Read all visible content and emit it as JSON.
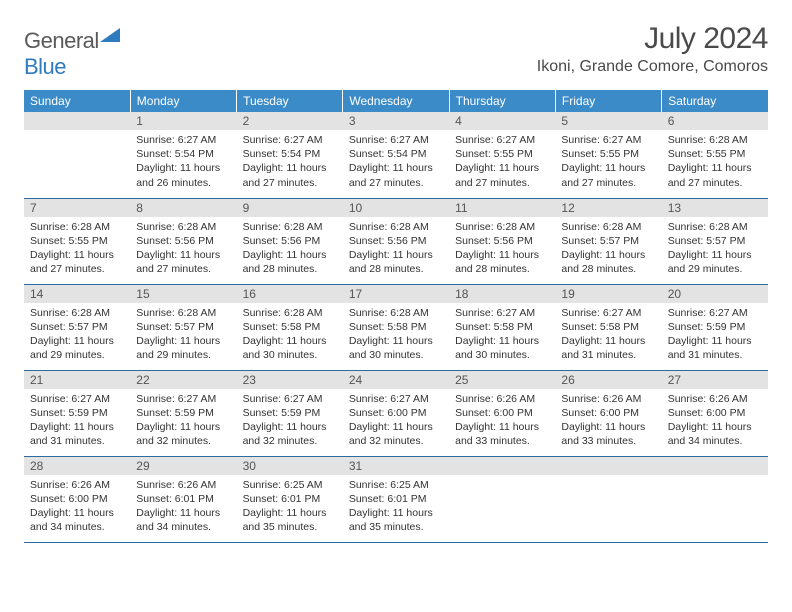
{
  "logo": {
    "text1": "General",
    "text2": "Blue"
  },
  "title": "July 2024",
  "location": "Ikoni, Grande Comore, Comoros",
  "colors": {
    "header_bg": "#3b8bc8",
    "header_text": "#ffffff",
    "daynum_bg": "#e3e3e3",
    "border": "#2f6a9e",
    "logo_gray": "#5a5a5a",
    "logo_blue": "#2f7bbf"
  },
  "weekdays": [
    "Sunday",
    "Monday",
    "Tuesday",
    "Wednesday",
    "Thursday",
    "Friday",
    "Saturday"
  ],
  "weeks": [
    [
      {
        "num": "",
        "lines": []
      },
      {
        "num": "1",
        "lines": [
          "Sunrise: 6:27 AM",
          "Sunset: 5:54 PM",
          "Daylight: 11 hours and 26 minutes."
        ]
      },
      {
        "num": "2",
        "lines": [
          "Sunrise: 6:27 AM",
          "Sunset: 5:54 PM",
          "Daylight: 11 hours and 27 minutes."
        ]
      },
      {
        "num": "3",
        "lines": [
          "Sunrise: 6:27 AM",
          "Sunset: 5:54 PM",
          "Daylight: 11 hours and 27 minutes."
        ]
      },
      {
        "num": "4",
        "lines": [
          "Sunrise: 6:27 AM",
          "Sunset: 5:55 PM",
          "Daylight: 11 hours and 27 minutes."
        ]
      },
      {
        "num": "5",
        "lines": [
          "Sunrise: 6:27 AM",
          "Sunset: 5:55 PM",
          "Daylight: 11 hours and 27 minutes."
        ]
      },
      {
        "num": "6",
        "lines": [
          "Sunrise: 6:28 AM",
          "Sunset: 5:55 PM",
          "Daylight: 11 hours and 27 minutes."
        ]
      }
    ],
    [
      {
        "num": "7",
        "lines": [
          "Sunrise: 6:28 AM",
          "Sunset: 5:55 PM",
          "Daylight: 11 hours and 27 minutes."
        ]
      },
      {
        "num": "8",
        "lines": [
          "Sunrise: 6:28 AM",
          "Sunset: 5:56 PM",
          "Daylight: 11 hours and 27 minutes."
        ]
      },
      {
        "num": "9",
        "lines": [
          "Sunrise: 6:28 AM",
          "Sunset: 5:56 PM",
          "Daylight: 11 hours and 28 minutes."
        ]
      },
      {
        "num": "10",
        "lines": [
          "Sunrise: 6:28 AM",
          "Sunset: 5:56 PM",
          "Daylight: 11 hours and 28 minutes."
        ]
      },
      {
        "num": "11",
        "lines": [
          "Sunrise: 6:28 AM",
          "Sunset: 5:56 PM",
          "Daylight: 11 hours and 28 minutes."
        ]
      },
      {
        "num": "12",
        "lines": [
          "Sunrise: 6:28 AM",
          "Sunset: 5:57 PM",
          "Daylight: 11 hours and 28 minutes."
        ]
      },
      {
        "num": "13",
        "lines": [
          "Sunrise: 6:28 AM",
          "Sunset: 5:57 PM",
          "Daylight: 11 hours and 29 minutes."
        ]
      }
    ],
    [
      {
        "num": "14",
        "lines": [
          "Sunrise: 6:28 AM",
          "Sunset: 5:57 PM",
          "Daylight: 11 hours and 29 minutes."
        ]
      },
      {
        "num": "15",
        "lines": [
          "Sunrise: 6:28 AM",
          "Sunset: 5:57 PM",
          "Daylight: 11 hours and 29 minutes."
        ]
      },
      {
        "num": "16",
        "lines": [
          "Sunrise: 6:28 AM",
          "Sunset: 5:58 PM",
          "Daylight: 11 hours and 30 minutes."
        ]
      },
      {
        "num": "17",
        "lines": [
          "Sunrise: 6:28 AM",
          "Sunset: 5:58 PM",
          "Daylight: 11 hours and 30 minutes."
        ]
      },
      {
        "num": "18",
        "lines": [
          "Sunrise: 6:27 AM",
          "Sunset: 5:58 PM",
          "Daylight: 11 hours and 30 minutes."
        ]
      },
      {
        "num": "19",
        "lines": [
          "Sunrise: 6:27 AM",
          "Sunset: 5:58 PM",
          "Daylight: 11 hours and 31 minutes."
        ]
      },
      {
        "num": "20",
        "lines": [
          "Sunrise: 6:27 AM",
          "Sunset: 5:59 PM",
          "Daylight: 11 hours and 31 minutes."
        ]
      }
    ],
    [
      {
        "num": "21",
        "lines": [
          "Sunrise: 6:27 AM",
          "Sunset: 5:59 PM",
          "Daylight: 11 hours and 31 minutes."
        ]
      },
      {
        "num": "22",
        "lines": [
          "Sunrise: 6:27 AM",
          "Sunset: 5:59 PM",
          "Daylight: 11 hours and 32 minutes."
        ]
      },
      {
        "num": "23",
        "lines": [
          "Sunrise: 6:27 AM",
          "Sunset: 5:59 PM",
          "Daylight: 11 hours and 32 minutes."
        ]
      },
      {
        "num": "24",
        "lines": [
          "Sunrise: 6:27 AM",
          "Sunset: 6:00 PM",
          "Daylight: 11 hours and 32 minutes."
        ]
      },
      {
        "num": "25",
        "lines": [
          "Sunrise: 6:26 AM",
          "Sunset: 6:00 PM",
          "Daylight: 11 hours and 33 minutes."
        ]
      },
      {
        "num": "26",
        "lines": [
          "Sunrise: 6:26 AM",
          "Sunset: 6:00 PM",
          "Daylight: 11 hours and 33 minutes."
        ]
      },
      {
        "num": "27",
        "lines": [
          "Sunrise: 6:26 AM",
          "Sunset: 6:00 PM",
          "Daylight: 11 hours and 34 minutes."
        ]
      }
    ],
    [
      {
        "num": "28",
        "lines": [
          "Sunrise: 6:26 AM",
          "Sunset: 6:00 PM",
          "Daylight: 11 hours and 34 minutes."
        ]
      },
      {
        "num": "29",
        "lines": [
          "Sunrise: 6:26 AM",
          "Sunset: 6:01 PM",
          "Daylight: 11 hours and 34 minutes."
        ]
      },
      {
        "num": "30",
        "lines": [
          "Sunrise: 6:25 AM",
          "Sunset: 6:01 PM",
          "Daylight: 11 hours and 35 minutes."
        ]
      },
      {
        "num": "31",
        "lines": [
          "Sunrise: 6:25 AM",
          "Sunset: 6:01 PM",
          "Daylight: 11 hours and 35 minutes."
        ]
      },
      {
        "num": "",
        "lines": []
      },
      {
        "num": "",
        "lines": []
      },
      {
        "num": "",
        "lines": []
      }
    ]
  ]
}
